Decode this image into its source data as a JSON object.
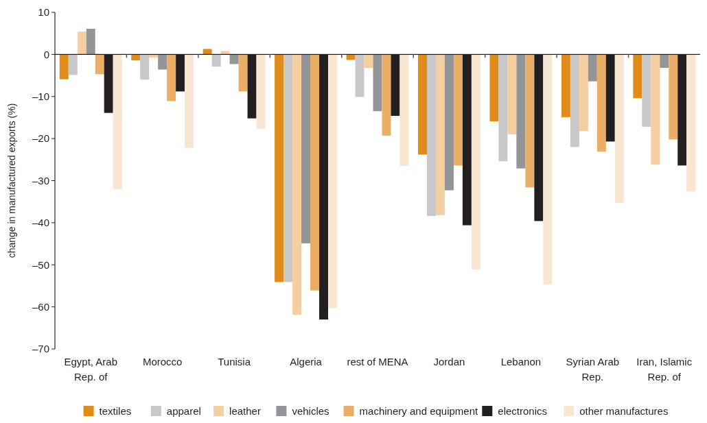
{
  "chart_data": {
    "type": "bar",
    "ylabel": "change in manufactured exports (%)",
    "categories": [
      "Egypt, Arab Rep. of",
      "Morocco",
      "Tunisia",
      "Algeria",
      "rest of MENA",
      "Jordan",
      "Lebanon",
      "Syrian Arab Rep.",
      "Iran, Islamic Rep. of"
    ],
    "series": [
      {
        "name": "textiles",
        "color": "#e08c1a",
        "values": [
          -5.9,
          -1.4,
          1.3,
          -54.1,
          -1.3,
          -23.8,
          -15.9,
          -14.9,
          -10.4
        ]
      },
      {
        "name": "apparel",
        "color": "#c8c8c8",
        "values": [
          -4.9,
          -6.0,
          -2.9,
          -54.1,
          -10.1,
          -38.4,
          -25.4,
          -22.0,
          -17.2
        ]
      },
      {
        "name": "leather",
        "color": "#f5cfa2",
        "values": [
          5.4,
          -0.8,
          0.8,
          -61.9,
          -3.2,
          -38.2,
          -19.0,
          -18.2,
          -26.2
        ]
      },
      {
        "name": "vehicles",
        "color": "#949598",
        "values": [
          6.1,
          -3.6,
          -2.3,
          -44.9,
          -13.5,
          -32.3,
          -27.1,
          -6.4,
          -3.2
        ]
      },
      {
        "name": "machinery and equipment",
        "color": "#eaaf66",
        "values": [
          -4.7,
          -11.1,
          -8.8,
          -56.1,
          -19.3,
          -26.4,
          -31.6,
          -23.1,
          -20.2
        ]
      },
      {
        "name": "electronics",
        "color": "#231f20",
        "values": [
          -13.9,
          -8.8,
          -15.2,
          -63.0,
          -14.6,
          -40.6,
          -39.6,
          -20.7,
          -26.4
        ]
      },
      {
        "name": "other manufactures",
        "color": "#f9e6d2",
        "values": [
          -32.0,
          -22.2,
          -17.7,
          -60.3,
          -26.5,
          -51.1,
          -54.7,
          -35.3,
          -32.6
        ]
      }
    ],
    "ylim": [
      -70,
      10
    ],
    "yticks": [
      10,
      0,
      {
        "value": -10,
        "label": "–10"
      },
      {
        "value": -20,
        "label": "–20"
      },
      {
        "value": -30,
        "label": "–30"
      },
      {
        "value": -40,
        "label": "–40"
      },
      {
        "value": -50,
        "label": "–50"
      },
      {
        "value": -60,
        "label": "–60"
      },
      {
        "value": -70,
        "label": "–70"
      }
    ],
    "legend": "bottom"
  }
}
